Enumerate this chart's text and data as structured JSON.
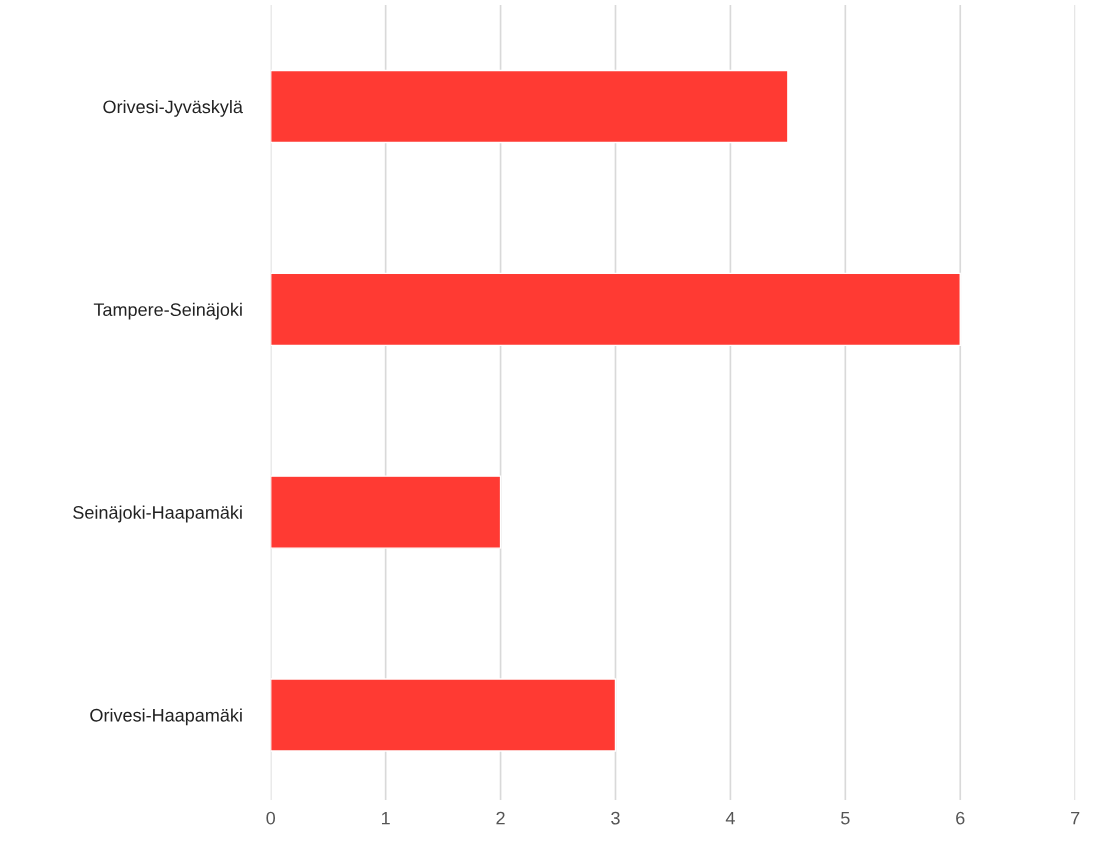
{
  "chart_data": {
    "type": "bar",
    "orientation": "horizontal",
    "categories": [
      "Orivesi-Jyväskylä",
      "Tampere-Seinäjoki",
      "Seinäjoki-Haapamäki",
      "Orivesi-Haapamäki"
    ],
    "values": [
      4.5,
      6,
      2,
      3
    ],
    "color": "#ff3a33",
    "xlim": [
      0,
      7
    ],
    "xticks": [
      0,
      1,
      2,
      3,
      4,
      5,
      6,
      7
    ],
    "grid": "x",
    "legend": false
  }
}
